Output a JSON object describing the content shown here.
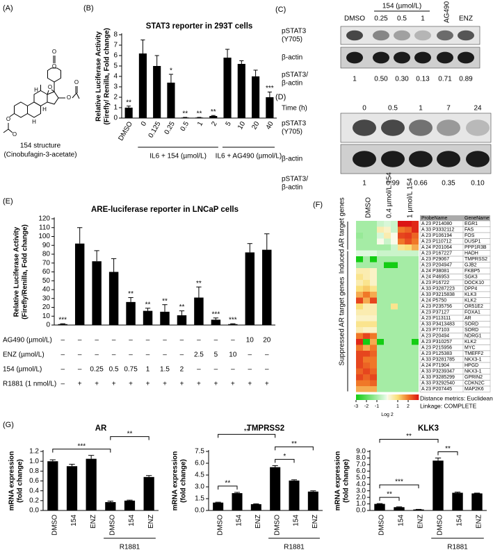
{
  "panel_labels": [
    "(A)",
    "(B)",
    "(C)",
    "(D)",
    "(E)",
    "(F)",
    "(G)"
  ],
  "structure": {
    "caption": [
      "154 structure",
      "(Cinobufagin-3-acetate)"
    ],
    "atoms": [
      "O",
      "O",
      "O",
      "O",
      "O",
      "O",
      "O",
      "H",
      "H",
      "H"
    ]
  },
  "blot_c": {
    "group_label": "154 (µmol/L)",
    "lanes": [
      "DMSO",
      "0.25",
      "0.5",
      "1",
      "AG490",
      "ENZ"
    ],
    "rows": [
      [
        "pSTAT3",
        "(Y705)"
      ],
      [
        "β-actin"
      ]
    ],
    "ratio_label": [
      "pSTAT3/",
      "β-actin"
    ],
    "ratios": [
      "1",
      "0.50",
      "0.30",
      "0.13",
      "0.71",
      "0.89"
    ]
  },
  "blot_d": {
    "axis_label": "Time (h)",
    "lanes": [
      "0",
      "0.5",
      "1",
      "7",
      "24"
    ],
    "rows": [
      [
        "pSTAT3",
        "(Y705)"
      ],
      [
        "β-actin"
      ]
    ],
    "ratio_label": [
      "pSTAT3/",
      "β-actin"
    ],
    "ratios": [
      "1",
      "0.99",
      "0.66",
      "0.35",
      "0.10"
    ]
  },
  "chart_data": [
    {
      "type": "bar",
      "title": "STAT3 reporter in 293T cells",
      "ylabel": [
        "Relative Luciferase Activity",
        "(Firefly/ Renilla, Fold change)"
      ],
      "categories": [
        "DMSO",
        "0",
        "0.125",
        "0.25",
        "0.5",
        "1",
        "2",
        "5",
        "10",
        "20",
        "40"
      ],
      "values": [
        1.0,
        6.2,
        5.0,
        3.4,
        0.05,
        0.05,
        0.2,
        5.8,
        5.2,
        4.0,
        2.0
      ],
      "errors": [
        0.15,
        1.3,
        1.0,
        0.8,
        0.02,
        0.02,
        0.05,
        0.8,
        0.3,
        0.6,
        0.5
      ],
      "significance": [
        "**",
        null,
        null,
        "*",
        "**",
        "**",
        "**",
        null,
        null,
        null,
        "***"
      ],
      "groups": [
        {
          "label": "IL6 + 154 (µmol/L)",
          "span": [
            1,
            6
          ]
        },
        {
          "label": "IL6 + AG490 (µmol/L)",
          "span": [
            7,
            10
          ]
        }
      ],
      "color": "#000000",
      "ylim": [
        0,
        8
      ],
      "yticks": [
        0,
        1,
        2,
        3,
        4,
        5,
        6,
        7,
        8
      ]
    },
    {
      "type": "bar",
      "title": "ARE-luciferase reporter in LNCaP cells",
      "ylabel": [
        "Relative Luciferase Activity",
        "(Firefly/Renilla, Fold change)"
      ],
      "values": [
        1,
        92,
        72,
        60,
        26,
        16,
        15,
        11,
        31,
        6,
        1,
        82,
        85
      ],
      "errors": [
        0.5,
        18,
        12,
        15,
        5,
        3,
        8,
        5,
        12,
        2,
        0.5,
        10,
        18
      ],
      "significance": [
        "***",
        null,
        null,
        null,
        "**",
        "**",
        "**",
        "**",
        "**",
        "***",
        "***",
        null,
        null
      ],
      "conditions": [
        {
          "label": "AG490 (µmol/L)",
          "cells": [
            "–",
            "–",
            "–",
            "–",
            "–",
            "–",
            "–",
            "–",
            "–",
            "–",
            "–",
            "10",
            "20"
          ]
        },
        {
          "label": "ENZ (µmol/L)",
          "cells": [
            "–",
            "–",
            "–",
            "–",
            "–",
            "–",
            "–",
            "–",
            "2.5",
            "5",
            "10",
            "–",
            "–"
          ]
        },
        {
          "label": "154 (µmol/L)",
          "cells": [
            "–",
            "–",
            "0.25",
            "0.5",
            "0.75",
            "1",
            "1.5",
            "2",
            "–",
            "–",
            "–",
            "–",
            "–"
          ]
        },
        {
          "label": "R1881 (1 nmol/L)",
          "cells": [
            "–",
            "+",
            "+",
            "+",
            "+",
            "+",
            "+",
            "+",
            "+",
            "+",
            "+",
            "+",
            "+"
          ]
        }
      ],
      "color": "#000000",
      "ylim": [
        0,
        120
      ],
      "yticks": [
        0,
        10,
        20,
        30,
        40,
        50,
        60,
        70,
        80,
        90,
        100,
        110,
        120
      ]
    },
    {
      "type": "bar",
      "title": "AR",
      "ylabel": [
        "mRNA expression",
        "(fold change)"
      ],
      "categories": [
        "DMSO",
        "154",
        "ENZ",
        "DMSO",
        "154",
        "ENZ"
      ],
      "values": [
        1.0,
        0.9,
        1.05,
        0.17,
        0.2,
        0.68
      ],
      "errors": [
        0.03,
        0.04,
        0.07,
        0.02,
        0.01,
        0.03
      ],
      "brackets": [
        {
          "text": "***",
          "between": [
            0,
            3
          ]
        },
        {
          "text": "**",
          "between": [
            3,
            5
          ]
        }
      ],
      "groups": [
        {
          "label": "R1881",
          "span": [
            3,
            5
          ]
        }
      ],
      "color": "#000000",
      "ylim": [
        0,
        1.2
      ],
      "yticks": [
        {
          "value": 0,
          "label": "0.0"
        },
        0.2,
        0.4,
        0.6,
        0.8,
        {
          "value": 1,
          "label": "1.0"
        },
        1.2
      ]
    },
    {
      "type": "bar",
      "title": "TMPRSS2",
      "ylabel": [
        "mRNA expression",
        "(fold change)"
      ],
      "categories": [
        "DMSO",
        "154",
        "ENZ",
        "DMSO",
        "154",
        "ENZ"
      ],
      "values": [
        1.0,
        2.2,
        0.8,
        5.5,
        3.8,
        2.4
      ],
      "errors": [
        0.05,
        0.1,
        0.05,
        0.2,
        0.1,
        0.1
      ],
      "brackets": [
        {
          "text": "**",
          "between": [
            0,
            1
          ]
        },
        {
          "text": "*",
          "between": [
            3,
            4
          ]
        },
        {
          "text": "**",
          "between": [
            3,
            5
          ]
        },
        {
          "text": "**",
          "between": [
            0,
            3
          ]
        }
      ],
      "groups": [
        {
          "label": "R1881",
          "span": [
            3,
            5
          ]
        }
      ],
      "color": "#000000",
      "ylim": [
        0,
        7.5
      ],
      "yticks": [
        {
          "value": 0,
          "label": "0.0"
        },
        1.5,
        {
          "value": 3,
          "label": "3.0"
        },
        4.5,
        {
          "value": 6,
          "label": "6.0"
        },
        7.5
      ]
    },
    {
      "type": "bar",
      "title": "KLK3",
      "ylabel": [
        "mRNA expression",
        "(fold change)"
      ],
      "categories": [
        "DMSO",
        "154",
        "ENZ",
        "DMSO",
        "154",
        "ENZ"
      ],
      "values": [
        1.0,
        0.5,
        0.15,
        7.6,
        2.7,
        2.6
      ],
      "errors": [
        0.05,
        0.05,
        0.02,
        0.4,
        0.1,
        0.05
      ],
      "brackets": [
        {
          "text": "**",
          "between": [
            0,
            1
          ]
        },
        {
          "text": "***",
          "between": [
            0,
            2
          ]
        },
        {
          "text": "**",
          "between": [
            3,
            4
          ]
        },
        {
          "text": "**",
          "between": [
            0,
            3
          ]
        }
      ],
      "groups": [
        {
          "label": "R1881",
          "span": [
            3,
            5
          ]
        }
      ],
      "color": "#000000",
      "ylim": [
        0,
        9
      ],
      "yticks": [
        {
          "value": 0,
          "label": "0.0"
        },
        {
          "value": 1,
          "label": "1.0"
        },
        {
          "value": 2,
          "label": "2.0"
        },
        {
          "value": 3,
          "label": "3.0"
        },
        {
          "value": 4,
          "label": "4.0"
        },
        {
          "value": 5,
          "label": "5.0"
        },
        {
          "value": 6,
          "label": "6.0"
        },
        {
          "value": 7,
          "label": "7.0"
        },
        {
          "value": 8,
          "label": "8.0"
        },
        {
          "value": 9,
          "label": "9.0"
        }
      ]
    },
    {
      "type": "heatmap",
      "columns": [
        "DMSO",
        "0.4 µmol/L 154",
        "1 µmol/L 154"
      ],
      "replicates": 3,
      "row_groups": [
        {
          "label": "Induced AR target genes",
          "span": [
            0,
            4
          ]
        },
        {
          "label": "Suppressed AR target genes",
          "span": [
            5,
            28
          ]
        }
      ],
      "table_header": [
        "ProbeName",
        "GeneName"
      ],
      "probes": [
        "A 23 P214080",
        "A 33 P3332112",
        "A 23 P106194",
        "A 23 P110712",
        "A 24 P201064",
        "A 23 P167227",
        "A 23 P29067",
        "A 23 P204947",
        "A 24 P38081",
        "A 24 P46953",
        "A 23 P16722",
        "A 33 P3287223",
        "A 33 P3215838",
        "A 24 P5750",
        "A 23 P235756",
        "A 23 P37127",
        "A 23 P113111",
        "A 33 P3413483",
        "A 23 P77103",
        "A 23 P20494",
        "A 23 P310257",
        "A 23 P215956",
        "A 23 P125383",
        "A 33 P3281785",
        "A 24 P71904",
        "A 33 P3239347",
        "A 33 P3285299",
        "A 33 P3292540",
        "A 23 P207445"
      ],
      "genes": [
        "EGR1",
        "FAS",
        "FOS",
        "DUSP1",
        "PPP1R3B",
        "HADH",
        "TMPRSS2",
        "GJB2",
        "FKBP5",
        "SGK3",
        "DOCK10",
        "DPP4",
        "KLK3",
        "KLK2",
        "OR51E2",
        "FOXA1",
        "AR",
        "SORD",
        "SORD",
        "NDRG1",
        "KLK2",
        "MYC",
        "TMEFF2",
        "NKX3-1",
        "HPGD",
        "NKX3-1",
        "GPRIN2",
        "CDKN2C",
        "MAP2K6"
      ],
      "values": [
        [
          -1,
          -1,
          -1,
          -0.5,
          -0.3,
          -0.5,
          3,
          3,
          2.8
        ],
        [
          -1,
          -1,
          -1,
          0.5,
          0.3,
          -0.5,
          2,
          2.2,
          2.8
        ],
        [
          -1.2,
          -1,
          -1,
          -0.3,
          0.5,
          0,
          2.5,
          2.6,
          2.2
        ],
        [
          -1,
          -1,
          -1,
          0,
          -0.5,
          0,
          2,
          2.4,
          2
        ],
        [
          -1,
          -1,
          -1,
          -1,
          -1,
          -0.5,
          0.8,
          1,
          1.5
        ],
        [
          -0.2,
          -0.2,
          -0.2,
          -0.5,
          -0.5,
          -0.5,
          -0.5,
          -0.5,
          -0.5
        ],
        [
          -3,
          -1,
          -3,
          -1,
          -1,
          -1,
          -1,
          -1,
          -1
        ],
        [
          -1,
          -1,
          -1,
          -1,
          -3,
          -3,
          -1,
          -1,
          -1
        ],
        [
          0.5,
          0.5,
          0.3,
          -1,
          -1,
          -1,
          -1,
          -1,
          -1
        ],
        [
          0.8,
          0.5,
          0.3,
          -1,
          -1,
          -1,
          -1,
          -1,
          -1
        ],
        [
          0.5,
          0.8,
          0.3,
          -1,
          -1,
          -1,
          -1,
          -1,
          -1
        ],
        [
          1,
          1.2,
          0.8,
          -1,
          -1,
          -1,
          -1,
          -1,
          -1
        ],
        [
          1.5,
          2,
          1.5,
          -1,
          -1,
          -1,
          -1,
          -1,
          -1
        ],
        [
          2.5,
          1.5,
          2.5,
          -1,
          -1,
          -1,
          -1,
          -1,
          -1
        ],
        [
          1,
          0.5,
          0.5,
          -1,
          -1,
          0.8,
          -1,
          -1,
          -1
        ],
        [
          0.5,
          0.5,
          0.5,
          -1,
          -1,
          -1,
          -1,
          -1,
          -1
        ],
        [
          0.3,
          0.3,
          0.3,
          -1,
          -1,
          -1,
          -1,
          -1,
          -1
        ],
        [
          0.8,
          0.8,
          0.8,
          -1,
          -1,
          -1,
          -1,
          -1,
          -1
        ],
        [
          0.5,
          0.3,
          0.3,
          -1,
          -1,
          -1,
          -1,
          -1,
          -1
        ],
        [
          2,
          2.5,
          2,
          -1,
          -1,
          -1,
          -1,
          -1,
          -1
        ],
        [
          2.8,
          -3,
          1.5,
          -3,
          -1,
          -1,
          -1,
          -1,
          -3
        ],
        [
          2,
          1.5,
          2,
          -1,
          -1,
          -1,
          -1,
          -1,
          -1
        ],
        [
          2.5,
          2.5,
          2.2,
          -1,
          -1,
          -1,
          -1,
          -1,
          -1
        ],
        [
          2.5,
          2,
          2,
          -1,
          -1,
          -1,
          -1,
          -1,
          -1
        ],
        [
          2.5,
          2.2,
          2,
          -1,
          -1,
          -1,
          -1,
          -1,
          -1
        ],
        [
          2.2,
          2.5,
          2.2,
          -1,
          -1,
          -1,
          -1,
          -1,
          -1
        ],
        [
          2.5,
          2.2,
          2.5,
          -1,
          -1,
          -1,
          -1,
          -1,
          -1
        ],
        [
          2,
          2,
          2.2,
          -1,
          -1,
          -1,
          -1,
          -1,
          -1
        ],
        [
          1.5,
          1.5,
          1.5,
          -1,
          -1,
          -1,
          -1,
          -1,
          -1
        ]
      ],
      "clim": [
        -3,
        3
      ],
      "cticks": [
        -3,
        -2,
        -1,
        1,
        2
      ],
      "clabel": "Log 2",
      "notes": [
        "Distance metrics: Euclidean",
        "Linkage: COMPLETE"
      ]
    }
  ]
}
